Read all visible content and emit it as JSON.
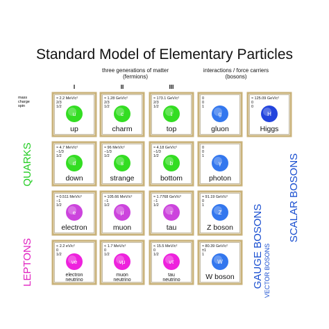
{
  "title": "Standard Model of Elementary Particles",
  "fermions_heading": [
    "three generations of matter",
    "(fermions)"
  ],
  "bosons_heading": [
    "interactions / force carriers",
    "(bosons)"
  ],
  "generations": [
    "I",
    "II",
    "III"
  ],
  "row_key": [
    "mass",
    "charge",
    "spin"
  ],
  "side_labels": {
    "quarks": "QUARKS",
    "leptons": "LEPTONS",
    "gauge": "GAUGE BOSONS",
    "vector": "VECTOR BOSONS",
    "scalar": "SCALAR BOSONS"
  },
  "rows": [
    [
      {
        "mass": "≈ 2.2 MeV/c²",
        "charge": "2/3",
        "spin": "1/2",
        "symbol": "u",
        "name": "up"
      },
      {
        "mass": "≈ 1.28 GeV/c²",
        "charge": "2/3",
        "spin": "1/2",
        "symbol": "c",
        "name": "charm"
      },
      {
        "mass": "≈ 173.1 GeV/c²",
        "charge": "2/3",
        "spin": "1/2",
        "symbol": "t",
        "name": "top"
      },
      {
        "mass": "0",
        "charge": "0",
        "spin": "1",
        "symbol": "g",
        "name": "gluon"
      },
      {
        "mass": "≈ 125.09 GeV/c²",
        "charge": "0",
        "spin": "0",
        "symbol": "H",
        "name": "Higgs"
      }
    ],
    [
      {
        "mass": "≈ 4.7 MeV/c²",
        "charge": "−1/3",
        "spin": "1/2",
        "symbol": "d",
        "name": "down"
      },
      {
        "mass": "≈ 96 MeV/c²",
        "charge": "−1/3",
        "spin": "1/2",
        "symbol": "s",
        "name": "strange"
      },
      {
        "mass": "≈ 4.18 GeV/c²",
        "charge": "−1/3",
        "spin": "1/2",
        "symbol": "b",
        "name": "bottom"
      },
      {
        "mass": "0",
        "charge": "0",
        "spin": "1",
        "symbol": "γ",
        "name": "photon"
      }
    ],
    [
      {
        "mass": "≈ 0.511 MeV/c²",
        "charge": "−1",
        "spin": "1/2",
        "symbol": "e",
        "name": "electron"
      },
      {
        "mass": "≈ 105.66 MeV/c²",
        "charge": "−1",
        "spin": "1/2",
        "symbol": "μ",
        "name": "muon"
      },
      {
        "mass": "≈ 1.7768 GeV/c²",
        "charge": "−1",
        "spin": "1/2",
        "symbol": "τ",
        "name": "tau"
      },
      {
        "mass": "≈ 91.19 GeV/c²",
        "charge": "0",
        "spin": "1",
        "symbol": "Z",
        "name": "Z boson"
      }
    ],
    [
      {
        "mass": "< 2.2 eV/c²",
        "charge": "0",
        "spin": "1/2",
        "symbol": "νe",
        "name": [
          "electron",
          "neutrino"
        ]
      },
      {
        "mass": "< 1.7 MeV/c²",
        "charge": "0",
        "spin": "1/2",
        "symbol": "νμ",
        "name": [
          "muon",
          "neutrino"
        ]
      },
      {
        "mass": "< 15.5 MeV/c²",
        "charge": "0",
        "spin": "1/2",
        "symbol": "ντ",
        "name": [
          "tau",
          "neutrino"
        ]
      },
      {
        "mass": "≈ 80.39 GeV/c²",
        "charge": "±1",
        "spin": "1",
        "symbol": "W",
        "name": "W boson"
      }
    ]
  ]
}
